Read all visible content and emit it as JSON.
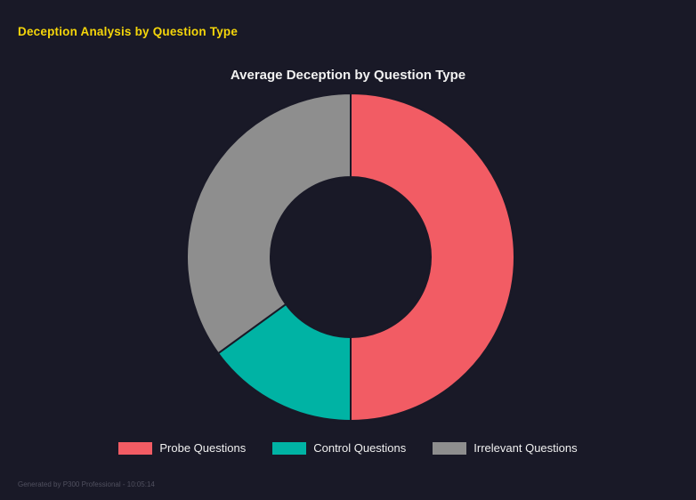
{
  "page": {
    "title": "Deception Analysis by Question Type",
    "footer": "Generated by P300 Professional - 10:05:14"
  },
  "colors": {
    "background": "#191927",
    "page_title": "#f5d60a",
    "chart_title": "#f2f2f2",
    "legend_text": "#f0f0f0",
    "footer_text": "#50505f"
  },
  "chart_data": {
    "type": "pie",
    "style": "donut",
    "title": "Average Deception by Question Type",
    "categories": [
      "Probe Questions",
      "Control Questions",
      "Irrelevant Questions"
    ],
    "values": [
      50,
      15,
      35
    ],
    "value_unit": "percent of donut (estimated from arc angles)",
    "colors": [
      "#f25c64",
      "#00b3a4",
      "#8e8e8e"
    ],
    "legend_position": "bottom",
    "legend": {
      "items": [
        {
          "label": "Probe Questions",
          "color": "#f25c64"
        },
        {
          "label": "Control Questions",
          "color": "#00b3a4"
        },
        {
          "label": "Irrelevant Questions",
          "color": "#8e8e8e"
        }
      ]
    },
    "geometry": {
      "outer_radius": 184,
      "inner_radius": 90,
      "start_angle_deg": 0,
      "direction": "clockwise"
    }
  }
}
